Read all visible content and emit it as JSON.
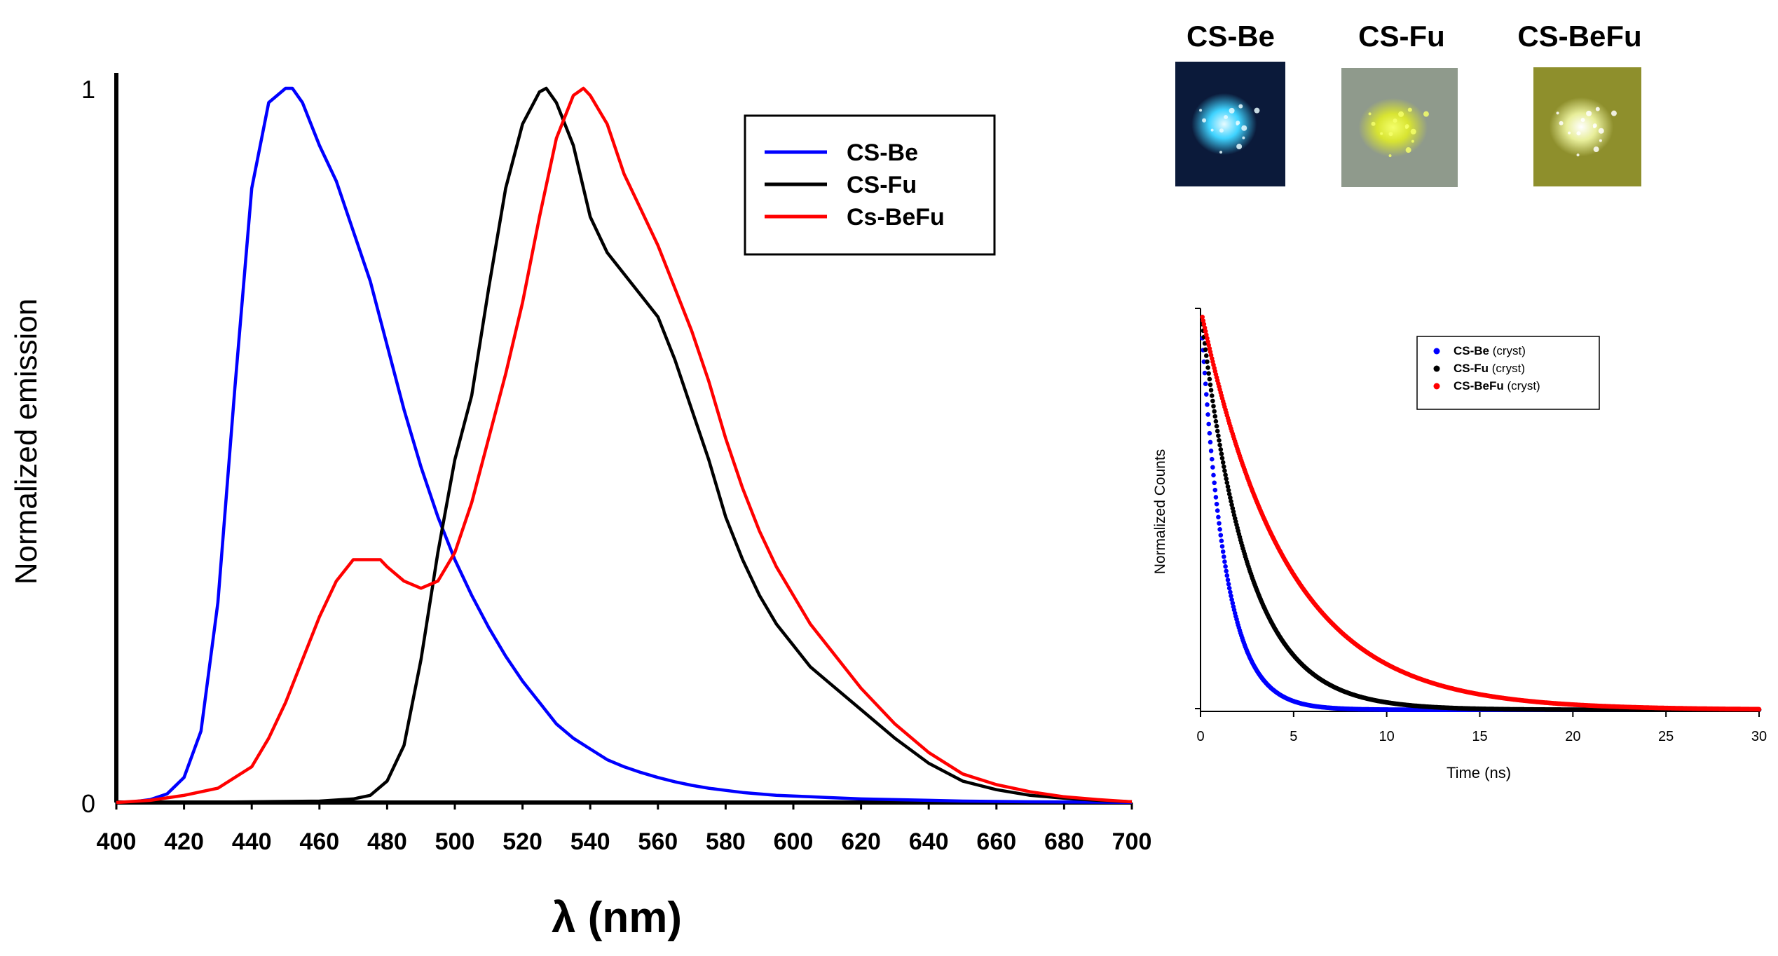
{
  "chart_data": [
    {
      "type": "line",
      "ylabel": "Normalized emission",
      "xlabel": "λ (nm)",
      "xlim": [
        400,
        700
      ],
      "ylim": [
        0,
        1
      ],
      "xticks": [
        400,
        420,
        440,
        460,
        480,
        500,
        520,
        540,
        560,
        580,
        600,
        620,
        640,
        660,
        680,
        700
      ],
      "yticks": [
        0,
        1
      ],
      "legend_position": "top-right",
      "grid": false,
      "series": [
        {
          "name": "CS-Be",
          "color": "#0000ff",
          "x": [
            400,
            405,
            410,
            415,
            420,
            425,
            430,
            435,
            440,
            445,
            450,
            452,
            455,
            460,
            465,
            470,
            475,
            480,
            485,
            490,
            495,
            500,
            505,
            510,
            515,
            520,
            525,
            530,
            535,
            540,
            545,
            550,
            555,
            560,
            565,
            570,
            575,
            580,
            585,
            590,
            595,
            600,
            605,
            610,
            620,
            630,
            640,
            650,
            660,
            670,
            680,
            690,
            700
          ],
          "y": [
            0,
            0.001,
            0.004,
            0.012,
            0.035,
            0.1,
            0.28,
            0.58,
            0.86,
            0.98,
            1.0,
            1.0,
            0.98,
            0.92,
            0.87,
            0.8,
            0.73,
            0.64,
            0.55,
            0.47,
            0.4,
            0.34,
            0.29,
            0.245,
            0.205,
            0.17,
            0.14,
            0.11,
            0.09,
            0.075,
            0.06,
            0.05,
            0.042,
            0.035,
            0.029,
            0.024,
            0.02,
            0.017,
            0.014,
            0.012,
            0.01,
            0.009,
            0.008,
            0.007,
            0.005,
            0.004,
            0.003,
            0.002,
            0.0015,
            0.001,
            0.0008,
            0.0005,
            0.0003
          ]
        },
        {
          "name": "CS-Fu",
          "color": "#000000",
          "x": [
            400,
            420,
            440,
            460,
            470,
            475,
            480,
            485,
            490,
            495,
            500,
            505,
            510,
            515,
            520,
            525,
            527,
            530,
            535,
            540,
            545,
            550,
            555,
            560,
            565,
            570,
            575,
            580,
            585,
            590,
            595,
            600,
            605,
            610,
            620,
            630,
            640,
            650,
            660,
            670,
            680,
            690,
            700
          ],
          "y": [
            0,
            0,
            0.001,
            0.002,
            0.005,
            0.01,
            0.03,
            0.08,
            0.2,
            0.35,
            0.48,
            0.57,
            0.72,
            0.86,
            0.95,
            0.995,
            1.0,
            0.98,
            0.92,
            0.82,
            0.77,
            0.74,
            0.71,
            0.68,
            0.62,
            0.55,
            0.48,
            0.4,
            0.34,
            0.29,
            0.25,
            0.22,
            0.19,
            0.17,
            0.13,
            0.09,
            0.055,
            0.03,
            0.018,
            0.01,
            0.006,
            0.003,
            0.001
          ]
        },
        {
          "name": "Cs-BeFu",
          "color": "#ff0000",
          "x": [
            400,
            410,
            420,
            430,
            440,
            445,
            450,
            455,
            460,
            465,
            470,
            475,
            478,
            480,
            485,
            490,
            495,
            500,
            505,
            510,
            515,
            520,
            525,
            530,
            535,
            538,
            540,
            545,
            550,
            555,
            560,
            565,
            570,
            575,
            580,
            585,
            590,
            595,
            600,
            605,
            610,
            620,
            630,
            640,
            650,
            660,
            670,
            680,
            690,
            700
          ],
          "y": [
            0,
            0.003,
            0.01,
            0.02,
            0.05,
            0.09,
            0.14,
            0.2,
            0.26,
            0.31,
            0.34,
            0.34,
            0.34,
            0.33,
            0.31,
            0.3,
            0.31,
            0.35,
            0.42,
            0.51,
            0.6,
            0.7,
            0.82,
            0.93,
            0.99,
            1.0,
            0.99,
            0.95,
            0.88,
            0.83,
            0.78,
            0.72,
            0.66,
            0.59,
            0.51,
            0.44,
            0.38,
            0.33,
            0.29,
            0.25,
            0.22,
            0.16,
            0.11,
            0.07,
            0.04,
            0.025,
            0.015,
            0.008,
            0.004,
            0.001
          ]
        }
      ]
    },
    {
      "type": "scatter",
      "xlabel": "Time (ns)",
      "ylabel": "Normalized Counts",
      "xlim": [
        0,
        30
      ],
      "xticks": [
        0,
        5,
        10,
        15,
        20,
        25,
        30
      ],
      "ylim": [
        0,
        1
      ],
      "legend_position": "top-right",
      "grid": false,
      "series": [
        {
          "name_bold": "CS-Be",
          "name_suffix": " (cryst)",
          "color": "#0000ff",
          "tau": 1.3
        },
        {
          "name_bold": "CS-Fu",
          "name_suffix": " (cryst)",
          "color": "#000000",
          "tau": 2.5
        },
        {
          "name_bold": "CS-BeFu",
          "name_suffix": " (cryst)",
          "color": "#ff0000",
          "tau": 4.6
        }
      ]
    }
  ],
  "photos": [
    {
      "label": "CS-Be",
      "colors": {
        "bg": "#0b1a3a",
        "glow": "#3fd3ff",
        "core": "#e8fbff"
      }
    },
    {
      "label": "CS-Fu",
      "colors": {
        "bg": "#8f9a8c",
        "glow": "#d8e432",
        "core": "#f4ff6a"
      }
    },
    {
      "label": "CS-BeFu",
      "colors": {
        "bg": "#8e8f2c",
        "glow": "#e8ee9a",
        "core": "#ffffff"
      }
    }
  ]
}
